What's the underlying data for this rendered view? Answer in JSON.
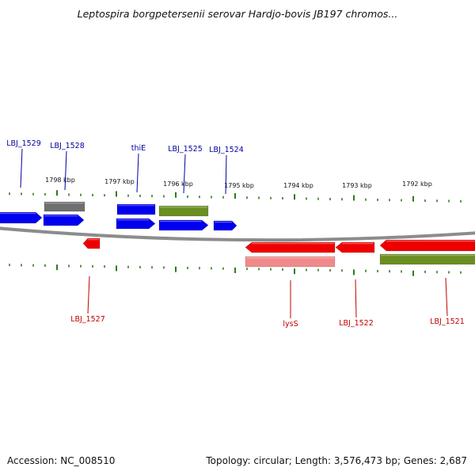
{
  "title": "Leptospira borgpetersenii serovar Hardjo-bovis JB197 chromos...",
  "footer": {
    "accession": "Accession: NC_008510",
    "topology": "Topology: circular; Length: 3,576,473 bp; Genes: 2,687"
  },
  "colors": {
    "forward_gene": "#0000ee",
    "reverse_gene": "#ee0000",
    "gray_feature": "#6f6f6f",
    "olive_feature": "#6b8e23",
    "pink_feature": "#f08a8a",
    "tick": "#2e7d1a",
    "backbone": "#8c8c8c",
    "forward_label": "#00009c",
    "reverse_label": "#c00000"
  },
  "scale_labels": [
    "1798 kbp",
    "1797 kbp",
    "1796 kbp",
    "1795 kbp",
    "1794 kbp",
    "1793 kbp",
    "1792 kbp"
  ],
  "forward_labels": [
    "LBJ_1529",
    "LBJ_1528",
    "thiE",
    "LBJ_1525",
    "LBJ_1524"
  ],
  "reverse_labels": [
    "LBJ_1527",
    "lysS",
    "LBJ_1522",
    "LBJ_1521"
  ]
}
